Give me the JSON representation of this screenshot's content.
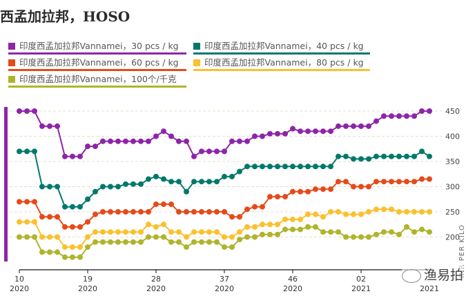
{
  "title": "西孟加拉邦，HOSO",
  "watermark": "渔易拍",
  "legend": [
    {
      "label": "印度西孟加拉邦Vannamei，30 pcs / kg",
      "color": "#8e24aa"
    },
    {
      "label": "印度西孟加拉邦Vannamei，40 pcs / kg",
      "color": "#00796b"
    },
    {
      "label": "印度西孟加拉邦Vannamei，60 pcs / kg",
      "color": "#e64a19"
    },
    {
      "label": "印度西孟加拉邦Vannamei，80 pcs / kg",
      "color": "#fbc02d"
    },
    {
      "label": "印度西孟加拉邦Vannamei，100个/千克",
      "color": "#afb42b"
    }
  ],
  "chart_data": {
    "type": "line",
    "title": "西孟加拉邦，HOSO",
    "xlabel": "",
    "ylabel": "INR PER KILO",
    "ylim": [
      200,
      450
    ],
    "yticks": [
      200,
      250,
      300,
      350,
      400,
      450
    ],
    "y_axis_position": "right",
    "grid": "horizontal dashed",
    "legend_position": "top",
    "x_start_week": "10/2020",
    "x_interval": "weekly",
    "xtick_labels": [
      {
        "index": 0,
        "week": "10",
        "year": "2020"
      },
      {
        "index": 9,
        "week": "19",
        "year": "2020"
      },
      {
        "index": 18,
        "week": "28",
        "year": "2020"
      },
      {
        "index": 27,
        "week": "37",
        "year": "2020"
      },
      {
        "index": 36,
        "week": "46",
        "year": "2020"
      },
      {
        "index": 45,
        "week": "02",
        "year": "2021"
      },
      {
        "index": 54,
        "week": "",
        "year": "2021"
      }
    ],
    "series": [
      {
        "name": "印度西孟加拉邦Vannamei，30 pcs / kg",
        "color": "#8e24aa",
        "values": [
          450,
          450,
          450,
          420,
          420,
          420,
          360,
          360,
          360,
          380,
          380,
          390,
          390,
          390,
          390,
          390,
          390,
          390,
          400,
          410,
          400,
          390,
          390,
          360,
          370,
          370,
          370,
          370,
          390,
          390,
          390,
          400,
          400,
          405,
          405,
          405,
          415,
          410,
          410,
          410,
          410,
          410,
          420,
          420,
          420,
          420,
          420,
          430,
          440,
          440,
          440,
          440,
          440,
          450,
          450
        ]
      },
      {
        "name": "印度西孟加拉邦Vannamei，40 pcs / kg",
        "color": "#00796b",
        "values": [
          370,
          370,
          370,
          300,
          300,
          300,
          260,
          260,
          260,
          275,
          290,
          300,
          300,
          300,
          305,
          305,
          305,
          315,
          320,
          315,
          310,
          310,
          290,
          310,
          310,
          310,
          310,
          320,
          320,
          330,
          340,
          340,
          340,
          340,
          340,
          340,
          340,
          340,
          340,
          340,
          340,
          340,
          360,
          360,
          355,
          355,
          355,
          360,
          360,
          360,
          360,
          360,
          360,
          370,
          360
        ]
      },
      {
        "name": "印度西孟加拉邦Vannamei，60 pcs / kg",
        "color": "#e64a19",
        "values": [
          270,
          270,
          270,
          240,
          240,
          240,
          220,
          220,
          220,
          230,
          245,
          250,
          250,
          250,
          250,
          250,
          250,
          250,
          265,
          265,
          265,
          250,
          250,
          250,
          250,
          250,
          250,
          250,
          240,
          240,
          255,
          260,
          260,
          280,
          280,
          280,
          290,
          290,
          290,
          295,
          295,
          295,
          310,
          310,
          300,
          300,
          300,
          310,
          310,
          310,
          310,
          310,
          310,
          315,
          315
        ]
      },
      {
        "name": "印度西孟加拉邦Vannamei，80 pcs / kg",
        "color": "#fbc02d",
        "values": [
          230,
          230,
          230,
          200,
          200,
          200,
          180,
          180,
          180,
          200,
          210,
          210,
          210,
          210,
          210,
          210,
          210,
          225,
          220,
          225,
          210,
          210,
          200,
          210,
          210,
          210,
          210,
          200,
          200,
          210,
          220,
          220,
          225,
          225,
          225,
          235,
          235,
          235,
          245,
          245,
          240,
          250,
          250,
          245,
          245,
          245,
          250,
          255,
          255,
          255,
          250,
          250,
          250,
          250,
          250
        ]
      },
      {
        "name": "印度西孟加拉邦Vannamei，100个/千克",
        "color": "#afb42b",
        "values": [
          200,
          200,
          200,
          170,
          170,
          170,
          160,
          160,
          160,
          180,
          190,
          190,
          190,
          190,
          190,
          190,
          190,
          200,
          200,
          200,
          190,
          190,
          180,
          190,
          190,
          190,
          190,
          180,
          180,
          195,
          200,
          200,
          205,
          205,
          205,
          215,
          215,
          215,
          220,
          220,
          210,
          210,
          210,
          200,
          200,
          200,
          200,
          205,
          210,
          210,
          205,
          220,
          210,
          215,
          210
        ]
      }
    ]
  }
}
